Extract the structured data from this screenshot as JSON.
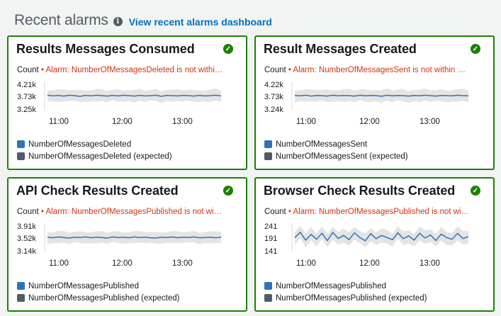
{
  "header": {
    "title": "Recent alarms",
    "info_icon": "info-icon",
    "link": "View recent alarms dashboard"
  },
  "colors": {
    "ok": "#1d8102",
    "alarm_text": "#d13212",
    "series": "#2e73b8",
    "expected": "#545b64",
    "band": "#e4e4e4"
  },
  "cards": [
    {
      "title": "Results Messages Consumed",
      "status_icon": "check-circle-icon",
      "unit": "Count",
      "alarm": "Alarm: NumberOfMessagesDeleted is not withi…",
      "chart_data": {
        "type": "line",
        "y_ticks": [
          "4.21k",
          "3.73k",
          "3.25k"
        ],
        "x_ticks": [
          "11:00",
          "12:00",
          "13:00"
        ],
        "ylim": [
          3250,
          4210
        ],
        "series": [
          {
            "name": "NumberOfMessagesDeleted",
            "values": [
              3750,
              3720,
              3740,
              3710,
              3750,
              3730,
              3700,
              3740,
              3720,
              3750,
              3730,
              3710,
              3740,
              3720,
              3750,
              3730,
              3710,
              3740,
              3720,
              3730,
              3750,
              3700,
              3740,
              3730,
              3720,
              3740,
              3730,
              3710,
              3740,
              3720,
              3730,
              3750,
              3720
            ]
          },
          {
            "name": "NumberOfMessagesDeleted (expected)",
            "band_upper": 3990,
            "band_lower": 3470
          }
        ]
      },
      "legend": [
        "NumberOfMessagesDeleted",
        "NumberOfMessagesDeleted (expected)"
      ]
    },
    {
      "title": "Result Messages Created",
      "status_icon": "check-circle-icon",
      "unit": "Count",
      "alarm": "Alarm: NumberOfMessagesSent is not within …",
      "chart_data": {
        "type": "line",
        "y_ticks": [
          "4.22k",
          "3.73k",
          "3.24k"
        ],
        "x_ticks": [
          "11:00",
          "12:00",
          "13:00"
        ],
        "ylim": [
          3240,
          4220
        ],
        "series": [
          {
            "name": "NumberOfMessagesSent",
            "values": [
              3740,
              3720,
              3750,
              3710,
              3740,
              3730,
              3710,
              3750,
              3720,
              3740,
              3730,
              3710,
              3750,
              3720,
              3740,
              3730,
              3700,
              3750,
              3720,
              3740,
              3730,
              3710,
              3740,
              3720,
              3750,
              3730,
              3710,
              3740,
              3730,
              3720,
              3750,
              3730,
              3720
            ]
          },
          {
            "name": "NumberOfMessagesSent (expected)",
            "band_upper": 4000,
            "band_lower": 3460
          }
        ]
      },
      "legend": [
        "NumberOfMessagesSent",
        "NumberOfMessagesSent (expected)"
      ]
    },
    {
      "title": "API Check Results Created",
      "status_icon": "check-circle-icon",
      "unit": "Count",
      "alarm": "Alarm: NumberOfMessagesPublished is not wi…",
      "chart_data": {
        "type": "line",
        "y_ticks": [
          "3.91k",
          "3.52k",
          "3.14k"
        ],
        "x_ticks": [
          "11:00",
          "12:00",
          "13:00"
        ],
        "ylim": [
          3140,
          3910
        ],
        "series": [
          {
            "name": "NumberOfMessagesPublished",
            "values": [
              3530,
              3510,
              3540,
              3520,
              3500,
              3530,
              3520,
              3540,
              3510,
              3530,
              3520,
              3500,
              3540,
              3520,
              3530,
              3510,
              3540,
              3520,
              3530,
              3510,
              3500,
              3530,
              3520,
              3540,
              3510,
              3530,
              3520,
              3540,
              3510,
              3520,
              3530,
              3510,
              3530
            ]
          },
          {
            "name": "NumberOfMessagesPublished (expected)",
            "band_upper": 3730,
            "band_lower": 3320
          }
        ]
      },
      "legend": [
        "NumberOfMessagesPublished",
        "NumberOfMessagesPublished (expected)"
      ]
    },
    {
      "title": "Browser Check Results Created",
      "status_icon": "check-circle-icon",
      "unit": "Count",
      "alarm": "Alarm: NumberOfMessagesPublished is not wi…",
      "chart_data": {
        "type": "line",
        "y_ticks": [
          "241",
          "191",
          "141"
        ],
        "x_ticks": [
          "11:00",
          "12:00",
          "13:00"
        ],
        "ylim": [
          141,
          241
        ],
        "series": [
          {
            "name": "NumberOfMessagesPublished",
            "values": [
              190,
              215,
              178,
              205,
              182,
              210,
              176,
              214,
              186,
              200,
              180,
              212,
              190,
              175,
              208,
              185,
              200,
              190,
              180,
              212,
              185,
              198,
              178,
              210,
              188,
              202,
              176,
              206,
              190,
              182,
              210,
              185,
              195
            ]
          },
          {
            "name": "NumberOfMessagesPublished (expected)",
            "band_upper": 222,
            "band_lower": 160
          }
        ]
      },
      "legend": [
        "NumberOfMessagesPublished",
        "NumberOfMessagesPublished (expected)"
      ]
    }
  ]
}
